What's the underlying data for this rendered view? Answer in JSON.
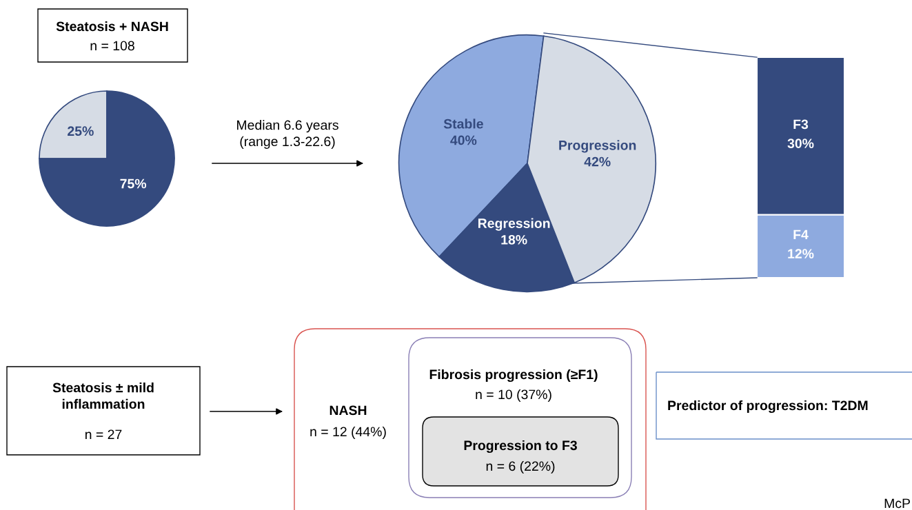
{
  "chart_data": [
    {
      "type": "pie",
      "title": "Steatosis + NASH",
      "subtitle": "n = 108",
      "categories": [
        null,
        null
      ],
      "values": [
        25,
        75
      ],
      "colors": [
        "#d6dce5",
        "#344a7e"
      ],
      "value_labels": [
        "25%",
        "75%"
      ]
    },
    {
      "type": "pie",
      "categories": [
        "Stable",
        "Regression",
        "Progression"
      ],
      "values": [
        40,
        18,
        42
      ],
      "colors": [
        "#8eaadf",
        "#344a7e",
        "#d6dce5"
      ],
      "value_labels": [
        "40%",
        "18%",
        "42%"
      ],
      "annotations": [
        "Median 6.6 years\n(range 1.3-22.6)"
      ]
    },
    {
      "type": "bar",
      "stacked": true,
      "categories": [
        null
      ],
      "series": [
        {
          "name": "F4",
          "color": "#8eaadf",
          "values": [
            12
          ],
          "value_labels": [
            "12%"
          ]
        },
        {
          "name": "F3",
          "color": "#344a7e",
          "values": [
            30
          ],
          "value_labels": [
            "30%"
          ]
        }
      ]
    },
    {
      "type": "other",
      "annotations": [
        "Steatosis ± mild\ninflammation",
        "n = 27",
        "NASH",
        "n = 12 (44%)",
        "Fibrosis progression (≥F1)",
        "n = 10 (37%)",
        "Progression to F3",
        "n = 6 (22%)",
        "Predictor of progression: T2DM",
        "McP"
      ]
    }
  ]
}
